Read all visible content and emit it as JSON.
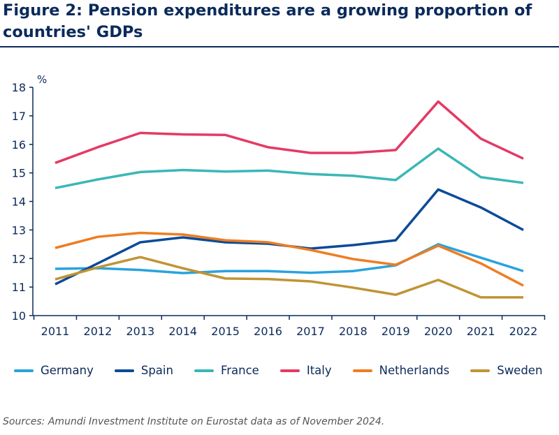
{
  "title": "Figure 2: Pension expenditures are a growing proportion of countries' GDPs",
  "source": "Sources: Amundi Investment Institute on Eurostat data as of November 2024.",
  "chart_data": {
    "type": "line",
    "title": "Figure 2: Pension expenditures are a growing proportion of countries' GDPs",
    "ylabel": "%",
    "xlabel": "",
    "ylim": [
      10,
      18
    ],
    "yticks": [
      "10",
      "11",
      "12",
      "13",
      "14",
      "15",
      "16",
      "17",
      "18"
    ],
    "grid": false,
    "legend": "bottom",
    "x": [
      "2011",
      "2012",
      "2013",
      "2014",
      "2015",
      "2016",
      "2017",
      "2018",
      "2019",
      "2020",
      "2021",
      "2022"
    ],
    "series": [
      {
        "name": "Germany",
        "color": "#29a3dd",
        "values": [
          11.64,
          11.66,
          11.6,
          11.49,
          11.56,
          11.56,
          11.5,
          11.56,
          11.76,
          12.5,
          12.03,
          11.56
        ]
      },
      {
        "name": "Spain",
        "color": "#0b4a99",
        "values": [
          11.1,
          11.83,
          12.57,
          12.74,
          12.57,
          12.52,
          12.35,
          12.47,
          12.64,
          14.42,
          13.79,
          13.0
        ]
      },
      {
        "name": "France",
        "color": "#3bb7b6",
        "values": [
          14.47,
          14.77,
          15.03,
          15.1,
          15.05,
          15.08,
          14.96,
          14.9,
          14.75,
          15.85,
          14.85,
          14.65
        ]
      },
      {
        "name": "Italy",
        "color": "#e43a64",
        "values": [
          15.35,
          15.9,
          16.4,
          16.35,
          16.33,
          15.9,
          15.7,
          15.7,
          15.8,
          17.5,
          16.2,
          15.5
        ]
      },
      {
        "name": "Netherlands",
        "color": "#ee7d22",
        "values": [
          12.37,
          12.76,
          12.9,
          12.84,
          12.64,
          12.57,
          12.3,
          11.98,
          11.78,
          12.45,
          11.83,
          11.05
        ]
      },
      {
        "name": "Sweden",
        "color": "#c09434",
        "values": [
          11.27,
          11.69,
          12.05,
          11.66,
          11.3,
          11.28,
          11.2,
          10.98,
          10.73,
          11.25,
          10.64,
          10.64
        ]
      }
    ]
  }
}
